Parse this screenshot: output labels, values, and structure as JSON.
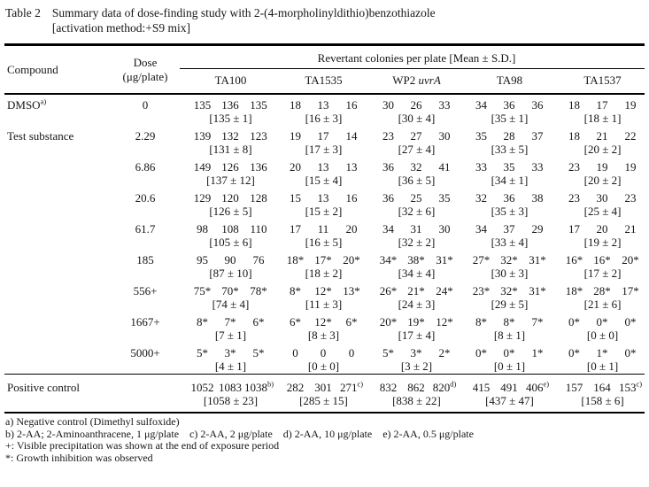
{
  "title": {
    "label": "Table 2",
    "line1": "Summary data of dose-finding study with 2-(4-morpholinyldithio)benzothiazole",
    "line2": "[activation method:+S9 mix]"
  },
  "header": {
    "compound": "Compound",
    "dose_line1": "Dose",
    "dose_line2": "(μg/plate)",
    "span": "Revertant colonies per plate [Mean ± S.D.]",
    "strains": [
      {
        "label": "TA100"
      },
      {
        "label": "TA1535"
      },
      {
        "label": "WP2 ",
        "italic": "uvrA"
      },
      {
        "label": "TA98"
      },
      {
        "label": "TA1537"
      }
    ]
  },
  "rows": [
    {
      "compound": "DMSO^a)",
      "dose": "0",
      "groups": [
        {
          "values": [
            "135",
            "136",
            "135"
          ],
          "mean": "[135 ± 1]"
        },
        {
          "values": [
            "18",
            "13",
            "16"
          ],
          "mean": "[16 ± 3]"
        },
        {
          "values": [
            "30",
            "26",
            "33"
          ],
          "mean": "[30 ± 4]"
        },
        {
          "values": [
            "34",
            "36",
            "36"
          ],
          "mean": "[35 ± 1]"
        },
        {
          "values": [
            "18",
            "17",
            "19"
          ],
          "mean": "[18 ± 1]"
        }
      ]
    },
    {
      "compound": "Test substance",
      "dose": "2.29",
      "groups": [
        {
          "values": [
            "139",
            "132",
            "123"
          ],
          "mean": "[131 ± 8]"
        },
        {
          "values": [
            "19",
            "17",
            "14"
          ],
          "mean": "[17 ± 3]"
        },
        {
          "values": [
            "23",
            "27",
            "30"
          ],
          "mean": "[27 ± 4]"
        },
        {
          "values": [
            "35",
            "28",
            "37"
          ],
          "mean": "[33 ± 5]"
        },
        {
          "values": [
            "18",
            "21",
            "22"
          ],
          "mean": "[20 ± 2]"
        }
      ]
    },
    {
      "compound": "",
      "dose": "6.86",
      "groups": [
        {
          "values": [
            "149",
            "126",
            "136"
          ],
          "mean": "[137 ± 12]"
        },
        {
          "values": [
            "20",
            "13",
            "13"
          ],
          "mean": "[15 ± 4]"
        },
        {
          "values": [
            "36",
            "32",
            "41"
          ],
          "mean": "[36 ± 5]"
        },
        {
          "values": [
            "33",
            "35",
            "33"
          ],
          "mean": "[34 ± 1]"
        },
        {
          "values": [
            "23",
            "19",
            "19"
          ],
          "mean": "[20 ± 2]"
        }
      ]
    },
    {
      "compound": "",
      "dose": "20.6",
      "groups": [
        {
          "values": [
            "129",
            "120",
            "128"
          ],
          "mean": "[126 ± 5]"
        },
        {
          "values": [
            "15",
            "13",
            "16"
          ],
          "mean": "[15 ± 2]"
        },
        {
          "values": [
            "36",
            "25",
            "35"
          ],
          "mean": "[32 ± 6]"
        },
        {
          "values": [
            "32",
            "36",
            "38"
          ],
          "mean": "[35 ± 3]"
        },
        {
          "values": [
            "23",
            "30",
            "23"
          ],
          "mean": "[25 ± 4]"
        }
      ]
    },
    {
      "compound": "",
      "dose": "61.7",
      "groups": [
        {
          "values": [
            "98",
            "108",
            "110"
          ],
          "mean": "[105 ± 6]"
        },
        {
          "values": [
            "17",
            "11",
            "20"
          ],
          "mean": "[16 ± 5]"
        },
        {
          "values": [
            "34",
            "31",
            "30"
          ],
          "mean": "[32 ± 2]"
        },
        {
          "values": [
            "34",
            "37",
            "29"
          ],
          "mean": "[33 ± 4]"
        },
        {
          "values": [
            "17",
            "20",
            "21"
          ],
          "mean": "[19 ± 2]"
        }
      ]
    },
    {
      "compound": "",
      "dose": "185",
      "groups": [
        {
          "values": [
            "95",
            "90",
            "76"
          ],
          "mean": "[87 ± 10]"
        },
        {
          "values": [
            "18*",
            "17*",
            "20*"
          ],
          "mean": "[18 ± 2]"
        },
        {
          "values": [
            "34*",
            "38*",
            "31*"
          ],
          "mean": "[34 ± 4]"
        },
        {
          "values": [
            "27*",
            "32*",
            "31*"
          ],
          "mean": "[30 ± 3]"
        },
        {
          "values": [
            "16*",
            "16*",
            "20*"
          ],
          "mean": "[17 ± 2]"
        }
      ]
    },
    {
      "compound": "",
      "dose": "556+",
      "groups": [
        {
          "values": [
            "75*",
            "70*",
            "78*"
          ],
          "mean": "[74 ± 4]"
        },
        {
          "values": [
            "8*",
            "12*",
            "13*"
          ],
          "mean": "[11 ± 3]"
        },
        {
          "values": [
            "26*",
            "21*",
            "24*"
          ],
          "mean": "[24 ± 3]"
        },
        {
          "values": [
            "23*",
            "32*",
            "31*"
          ],
          "mean": "[29 ± 5]"
        },
        {
          "values": [
            "18*",
            "28*",
            "17*"
          ],
          "mean": "[21 ± 6]"
        }
      ]
    },
    {
      "compound": "",
      "dose": "1667+",
      "groups": [
        {
          "values": [
            "8*",
            "7*",
            "6*"
          ],
          "mean": "[7 ± 1]"
        },
        {
          "values": [
            "6*",
            "12*",
            "6*"
          ],
          "mean": "[8 ± 3]"
        },
        {
          "values": [
            "20*",
            "19*",
            "12*"
          ],
          "mean": "[17 ± 4]"
        },
        {
          "values": [
            "8*",
            "8*",
            "7*"
          ],
          "mean": "[8 ± 1]"
        },
        {
          "values": [
            "0*",
            "0*",
            "0*"
          ],
          "mean": "[0 ± 0]"
        }
      ]
    },
    {
      "compound": "",
      "dose": "5000+",
      "groups": [
        {
          "values": [
            "5*",
            "3*",
            "5*"
          ],
          "mean": "[4 ± 1]"
        },
        {
          "values": [
            "0",
            "0",
            "0"
          ],
          "mean": "[0 ± 0]"
        },
        {
          "values": [
            "5*",
            "3*",
            "2*"
          ],
          "mean": "[3 ± 2]"
        },
        {
          "values": [
            "0*",
            "0*",
            "1*"
          ],
          "mean": "[0 ± 1]"
        },
        {
          "values": [
            "0*",
            "1*",
            "0*"
          ],
          "mean": "[0 ± 1]"
        }
      ]
    },
    {
      "compound": "Positive control",
      "dose": "",
      "rule_above": true,
      "groups": [
        {
          "values": [
            "1052",
            "1083",
            "1038^b)"
          ],
          "mean": "[1058 ± 23]"
        },
        {
          "values": [
            "282",
            "301",
            "271^c)"
          ],
          "mean": "[285 ± 15]"
        },
        {
          "values": [
            "832",
            "862",
            "820^d)"
          ],
          "mean": "[838 ± 22]"
        },
        {
          "values": [
            "415",
            "491",
            "406^e)"
          ],
          "mean": "[437 ± 47]"
        },
        {
          "values": [
            "157",
            "164",
            "153^c)"
          ],
          "mean": "[158 ± 6]"
        }
      ]
    }
  ],
  "footnotes": [
    "a) Negative control (Dimethyl sulfoxide)",
    "b) 2-AA; 2-Aminoanthracene, 1 μg/plate    c) 2-AA, 2 μg/plate    d) 2-AA, 10 μg/plate    e) 2-AA, 0.5 μg/plate",
    "+: Visible precipitation was shown at the end of exposure period",
    "*: Growth inhibition was observed"
  ]
}
